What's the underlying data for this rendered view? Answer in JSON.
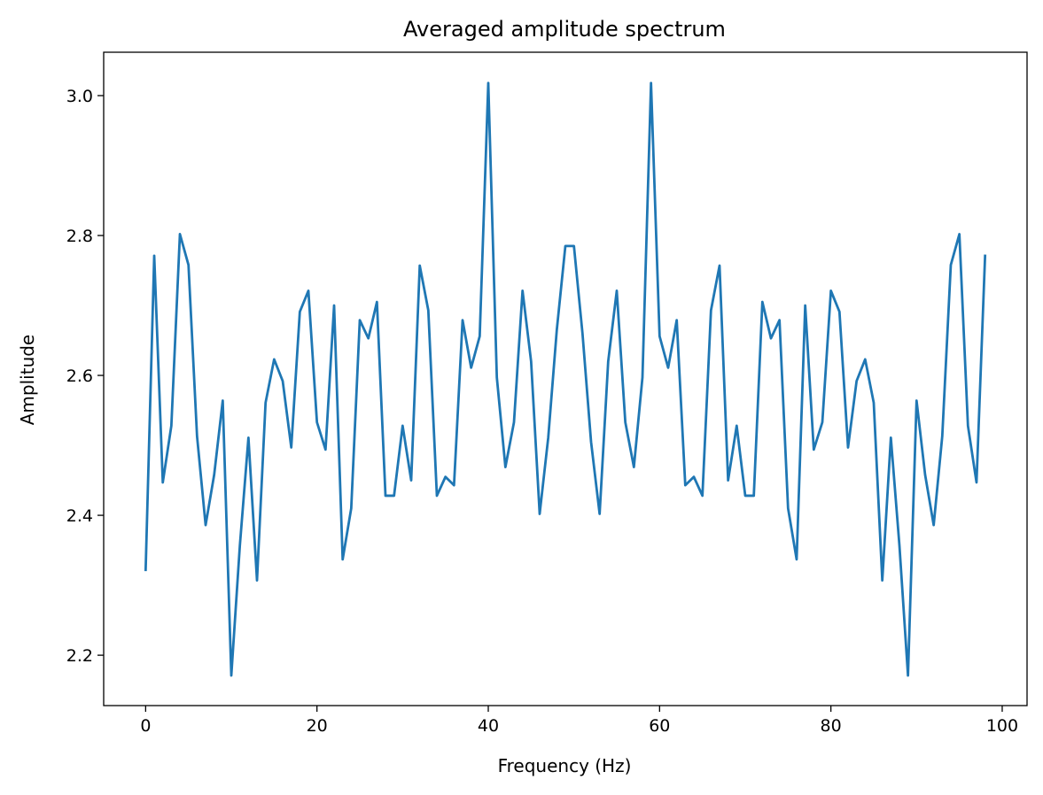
{
  "chart_data": {
    "type": "line",
    "title": "Averaged amplitude spectrum",
    "xlabel": "Frequency (Hz)",
    "ylabel": "Amplitude",
    "xlim": [
      -4.9,
      102.9
    ],
    "ylim": [
      2.128,
      3.062
    ],
    "xticks": [
      0,
      20,
      40,
      60,
      80,
      100
    ],
    "yticks": [
      2.2,
      2.4,
      2.6,
      2.8,
      3.0
    ],
    "xtick_labels": [
      "0",
      "20",
      "40",
      "60",
      "80",
      "100"
    ],
    "ytick_labels": [
      "2.2",
      "2.4",
      "2.6",
      "2.8",
      "3.0"
    ],
    "grid": false,
    "legend": "none",
    "series": [
      {
        "color": "#1f77b4",
        "x": [
          0,
          1,
          2,
          3,
          4,
          5,
          6,
          7,
          8,
          9,
          10,
          11,
          12,
          13,
          14,
          15,
          16,
          17,
          18,
          19,
          20,
          21,
          22,
          23,
          24,
          25,
          26,
          27,
          28,
          29,
          30,
          31,
          32,
          33,
          34,
          35,
          36,
          37,
          38,
          39,
          40,
          41,
          42,
          43,
          44,
          45,
          46,
          47,
          48,
          49,
          50,
          51,
          52,
          53,
          54,
          55,
          56,
          57,
          58,
          59,
          60,
          61,
          62,
          63,
          64,
          65,
          66,
          67,
          68,
          69,
          70,
          71,
          72,
          73,
          74,
          75,
          76,
          77,
          78,
          79,
          80,
          81,
          82,
          83,
          84,
          85,
          86,
          87,
          88,
          89,
          90,
          91,
          92,
          93,
          94,
          95,
          96,
          97,
          98
        ],
        "values": [
          2.322,
          2.771,
          2.447,
          2.528,
          2.802,
          2.758,
          2.513,
          2.386,
          2.458,
          2.564,
          2.171,
          2.357,
          2.511,
          2.307,
          2.561,
          2.623,
          2.592,
          2.497,
          2.691,
          2.721,
          2.533,
          2.494,
          2.7,
          2.337,
          2.41,
          2.679,
          2.653,
          2.705,
          2.428,
          2.428,
          2.528,
          2.45,
          2.757,
          2.693,
          2.428,
          2.455,
          2.443,
          2.679,
          2.611,
          2.656,
          3.018,
          2.597,
          2.469,
          2.533,
          2.721,
          2.62,
          2.402,
          2.511,
          2.665,
          2.785,
          2.785,
          2.66,
          2.505,
          2.402,
          2.62,
          2.721,
          2.533,
          2.469,
          2.597,
          3.018,
          2.656,
          2.611,
          2.679,
          2.443,
          2.455,
          2.428,
          2.693,
          2.757,
          2.45,
          2.528,
          2.428,
          2.428,
          2.705,
          2.653,
          2.679,
          2.41,
          2.337,
          2.7,
          2.494,
          2.533,
          2.721,
          2.691,
          2.497,
          2.592,
          2.623,
          2.561,
          2.307,
          2.511,
          2.357,
          2.171,
          2.564,
          2.458,
          2.386,
          2.513,
          2.758,
          2.802,
          2.528,
          2.447,
          2.771
        ]
      }
    ]
  }
}
